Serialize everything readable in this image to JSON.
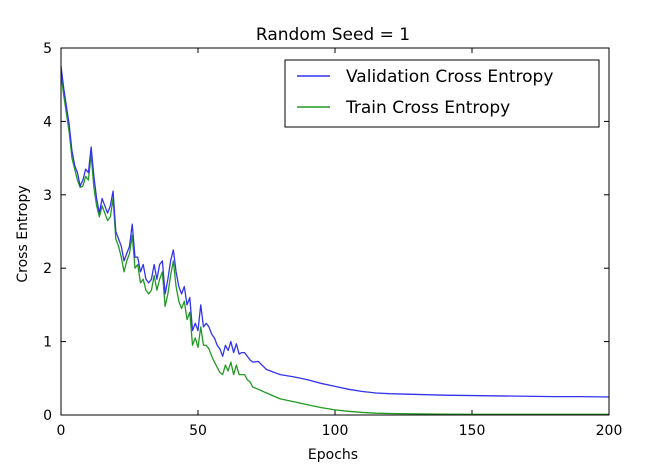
{
  "chart_data": {
    "type": "line",
    "title": "Random Seed = 1",
    "xlabel": "Epochs",
    "ylabel": "Cross Entropy",
    "xlim": [
      0,
      200
    ],
    "ylim": [
      0,
      5
    ],
    "xticks": [
      0,
      50,
      100,
      150,
      200
    ],
    "yticks": [
      0,
      1,
      2,
      3,
      4,
      5
    ],
    "grid": false,
    "legend_position": "top-right",
    "series": [
      {
        "name": "Validation Cross Entropy",
        "color": "#3333ee",
        "points": [
          [
            0,
            4.75
          ],
          [
            1,
            4.45
          ],
          [
            2,
            4.2
          ],
          [
            3,
            3.95
          ],
          [
            4,
            3.6
          ],
          [
            5,
            3.4
          ],
          [
            6,
            3.3
          ],
          [
            7,
            3.12
          ],
          [
            8,
            3.2
          ],
          [
            9,
            3.35
          ],
          [
            10,
            3.3
          ],
          [
            11,
            3.65
          ],
          [
            12,
            3.25
          ],
          [
            13,
            2.95
          ],
          [
            14,
            2.75
          ],
          [
            15,
            2.95
          ],
          [
            16,
            2.85
          ],
          [
            17,
            2.75
          ],
          [
            18,
            2.85
          ],
          [
            19,
            3.05
          ],
          [
            20,
            2.5
          ],
          [
            21,
            2.4
          ],
          [
            22,
            2.3
          ],
          [
            23,
            2.1
          ],
          [
            24,
            2.2
          ],
          [
            25,
            2.3
          ],
          [
            26,
            2.6
          ],
          [
            27,
            2.15
          ],
          [
            28,
            2.15
          ],
          [
            29,
            1.95
          ],
          [
            30,
            2.05
          ],
          [
            31,
            1.85
          ],
          [
            32,
            1.8
          ],
          [
            33,
            1.85
          ],
          [
            34,
            2.05
          ],
          [
            35,
            1.85
          ],
          [
            36,
            2.05
          ],
          [
            37,
            2.1
          ],
          [
            38,
            1.65
          ],
          [
            39,
            1.85
          ],
          [
            40,
            2.1
          ],
          [
            41,
            2.25
          ],
          [
            42,
            1.95
          ],
          [
            43,
            1.75
          ],
          [
            44,
            1.65
          ],
          [
            45,
            1.75
          ],
          [
            46,
            1.5
          ],
          [
            47,
            1.6
          ],
          [
            48,
            1.15
          ],
          [
            49,
            1.25
          ],
          [
            50,
            1.15
          ],
          [
            51,
            1.5
          ],
          [
            52,
            1.2
          ],
          [
            53,
            1.25
          ],
          [
            54,
            1.2
          ],
          [
            55,
            1.1
          ],
          [
            56,
            1.05
          ],
          [
            57,
            0.95
          ],
          [
            58,
            0.9
          ],
          [
            59,
            0.8
          ],
          [
            60,
            0.95
          ],
          [
            61,
            0.88
          ],
          [
            62,
            1.0
          ],
          [
            63,
            0.85
          ],
          [
            64,
            0.97
          ],
          [
            65,
            0.83
          ],
          [
            66,
            0.85
          ],
          [
            67,
            0.85
          ],
          [
            68,
            0.8
          ],
          [
            69,
            0.75
          ],
          [
            70,
            0.72
          ],
          [
            72,
            0.73
          ],
          [
            75,
            0.62
          ],
          [
            80,
            0.55
          ],
          [
            85,
            0.52
          ],
          [
            90,
            0.48
          ],
          [
            95,
            0.43
          ],
          [
            100,
            0.39
          ],
          [
            105,
            0.35
          ],
          [
            110,
            0.32
          ],
          [
            115,
            0.3
          ],
          [
            120,
            0.29
          ],
          [
            130,
            0.28
          ],
          [
            140,
            0.27
          ],
          [
            150,
            0.265
          ],
          [
            160,
            0.26
          ],
          [
            170,
            0.255
          ],
          [
            180,
            0.25
          ],
          [
            190,
            0.25
          ],
          [
            200,
            0.245
          ]
        ]
      },
      {
        "name": "Train Cross Entropy",
        "color": "#229922",
        "points": [
          [
            0,
            4.65
          ],
          [
            1,
            4.35
          ],
          [
            2,
            4.1
          ],
          [
            3,
            3.85
          ],
          [
            4,
            3.5
          ],
          [
            5,
            3.35
          ],
          [
            6,
            3.2
          ],
          [
            7,
            3.1
          ],
          [
            8,
            3.12
          ],
          [
            9,
            3.25
          ],
          [
            10,
            3.2
          ],
          [
            11,
            3.55
          ],
          [
            12,
            3.1
          ],
          [
            13,
            2.85
          ],
          [
            14,
            2.7
          ],
          [
            15,
            2.85
          ],
          [
            16,
            2.75
          ],
          [
            17,
            2.65
          ],
          [
            18,
            2.7
          ],
          [
            19,
            2.95
          ],
          [
            20,
            2.4
          ],
          [
            21,
            2.3
          ],
          [
            22,
            2.15
          ],
          [
            23,
            1.95
          ],
          [
            24,
            2.1
          ],
          [
            25,
            2.2
          ],
          [
            26,
            2.45
          ],
          [
            27,
            2.0
          ],
          [
            28,
            2.05
          ],
          [
            29,
            1.8
          ],
          [
            30,
            1.85
          ],
          [
            31,
            1.7
          ],
          [
            32,
            1.65
          ],
          [
            33,
            1.7
          ],
          [
            34,
            1.9
          ],
          [
            35,
            1.7
          ],
          [
            36,
            1.85
          ],
          [
            37,
            1.95
          ],
          [
            38,
            1.48
          ],
          [
            39,
            1.65
          ],
          [
            40,
            1.9
          ],
          [
            41,
            2.1
          ],
          [
            42,
            1.75
          ],
          [
            43,
            1.55
          ],
          [
            44,
            1.45
          ],
          [
            45,
            1.55
          ],
          [
            46,
            1.3
          ],
          [
            47,
            1.4
          ],
          [
            48,
            0.95
          ],
          [
            49,
            1.05
          ],
          [
            50,
            0.92
          ],
          [
            51,
            1.2
          ],
          [
            52,
            0.95
          ],
          [
            53,
            0.95
          ],
          [
            54,
            0.9
          ],
          [
            55,
            0.8
          ],
          [
            56,
            0.72
          ],
          [
            57,
            0.65
          ],
          [
            58,
            0.58
          ],
          [
            59,
            0.55
          ],
          [
            60,
            0.68
          ],
          [
            61,
            0.6
          ],
          [
            62,
            0.72
          ],
          [
            63,
            0.55
          ],
          [
            64,
            0.68
          ],
          [
            65,
            0.55
          ],
          [
            66,
            0.55
          ],
          [
            67,
            0.55
          ],
          [
            68,
            0.48
          ],
          [
            69,
            0.45
          ],
          [
            70,
            0.38
          ],
          [
            72,
            0.35
          ],
          [
            75,
            0.3
          ],
          [
            80,
            0.22
          ],
          [
            85,
            0.18
          ],
          [
            90,
            0.14
          ],
          [
            95,
            0.1
          ],
          [
            100,
            0.07
          ],
          [
            105,
            0.05
          ],
          [
            110,
            0.035
          ],
          [
            115,
            0.025
          ],
          [
            120,
            0.02
          ],
          [
            130,
            0.015
          ],
          [
            140,
            0.012
          ],
          [
            150,
            0.01
          ],
          [
            160,
            0.01
          ],
          [
            170,
            0.01
          ],
          [
            180,
            0.01
          ],
          [
            190,
            0.01
          ],
          [
            200,
            0.01
          ]
        ]
      }
    ]
  }
}
